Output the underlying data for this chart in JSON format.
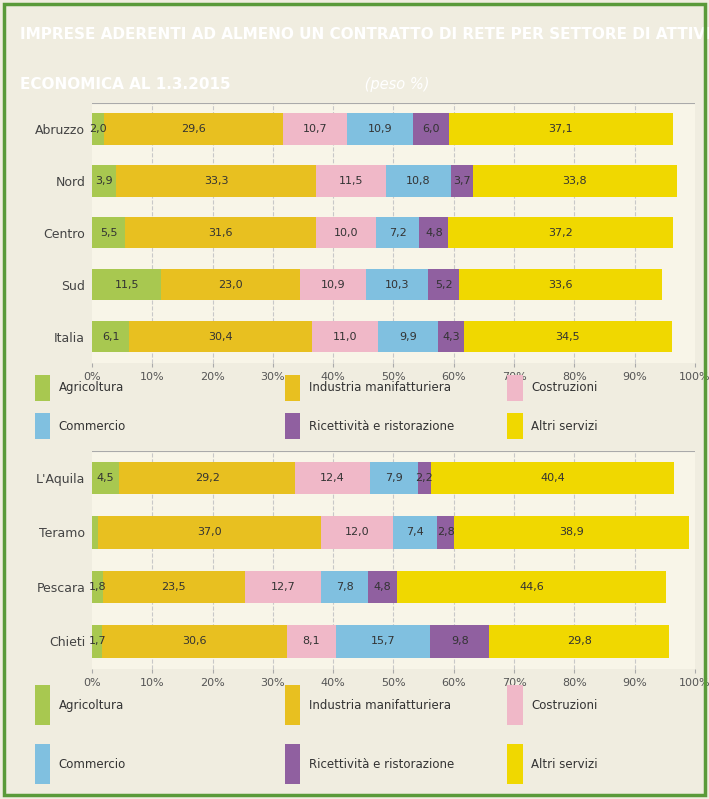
{
  "title_line1": "IMPRESE ADERENTI AD ALMENO UN CONTRATTO DI RETE PER SETTORE DI ATTIVITÀ",
  "title_line2": "ECONOMICA AL 1.3.2015",
  "title_italic": " (peso %)",
  "title_bg": "#3d7a28",
  "title_color": "#ffffff",
  "fig_bg": "#f0ede0",
  "panel_bg": "#f8f5e8",
  "chart_bg": "#f8f5e8",
  "colors": {
    "Agricoltura": "#a8c850",
    "Industria manifatturiera": "#e8c020",
    "Costruzioni": "#f0b8c8",
    "Commercio": "#80c0e0",
    "Ricettività e ristorazione": "#9060a0",
    "Altri servizi": "#f0d800"
  },
  "legend_labels": [
    "Agricoltura",
    "Industria manifatturiera",
    "Costruzioni",
    "Commercio",
    "Ricettività e ristorazione",
    "Altri servizi"
  ],
  "chart1": {
    "categories": [
      "Abruzzo",
      "Nord",
      "Centro",
      "Sud",
      "Italia"
    ],
    "data": {
      "Agricoltura": [
        2.0,
        3.9,
        5.5,
        11.5,
        6.1
      ],
      "Industria manifatturiera": [
        29.6,
        33.3,
        31.6,
        23.0,
        30.4
      ],
      "Costruzioni": [
        10.7,
        11.5,
        10.0,
        10.9,
        11.0
      ],
      "Commercio": [
        10.9,
        10.8,
        7.2,
        10.3,
        9.9
      ],
      "Ricettività e ristorazione": [
        6.0,
        3.7,
        4.8,
        5.2,
        4.3
      ],
      "Altri servizi": [
        37.1,
        33.8,
        37.2,
        33.6,
        34.5
      ]
    }
  },
  "chart2": {
    "categories": [
      "L'Aquila",
      "Teramo",
      "Pescara",
      "Chieti"
    ],
    "data": {
      "Agricoltura": [
        4.5,
        0.9,
        1.8,
        1.7
      ],
      "Industria manifatturiera": [
        29.2,
        37.0,
        23.5,
        30.6
      ],
      "Costruzioni": [
        12.4,
        12.0,
        12.7,
        8.1
      ],
      "Commercio": [
        7.9,
        7.4,
        7.8,
        15.7
      ],
      "Ricettività e ristorazione": [
        2.2,
        2.8,
        4.8,
        9.8
      ],
      "Altri servizi": [
        40.4,
        38.9,
        44.6,
        29.8
      ]
    }
  },
  "outer_border_color": "#5a9a3a",
  "separator_color": "#5a9a3a",
  "grid_color": "#c8c8c8",
  "label_fontsize": 9,
  "bar_label_fontsize": 8,
  "tick_fontsize": 8,
  "legend_fontsize": 8.5,
  "title_fontsize": 11
}
